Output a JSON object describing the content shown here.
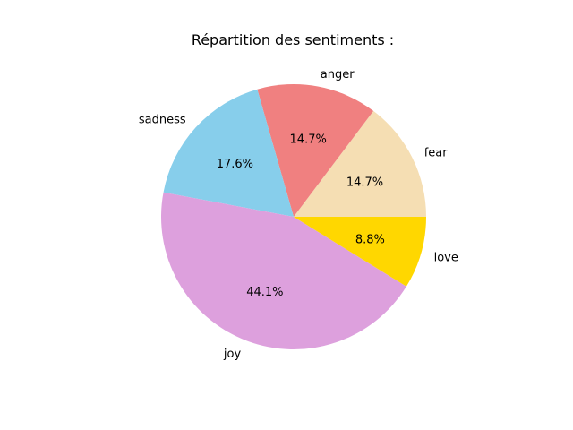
{
  "chart_data": {
    "type": "pie",
    "title": "Répartition des sentiments :",
    "start_angle": 0,
    "direction": "counterclockwise",
    "categories": [
      "fear",
      "anger",
      "sadness",
      "joy",
      "love"
    ],
    "values": [
      14.7,
      14.7,
      17.6,
      44.1,
      8.8
    ],
    "value_labels": [
      "14.7%",
      "14.7%",
      "17.6%",
      "44.1%",
      "8.8%"
    ],
    "colors": [
      "#F5DEB3",
      "#F08080",
      "#87CEEB",
      "#DDA0DD",
      "#FFD700"
    ]
  }
}
